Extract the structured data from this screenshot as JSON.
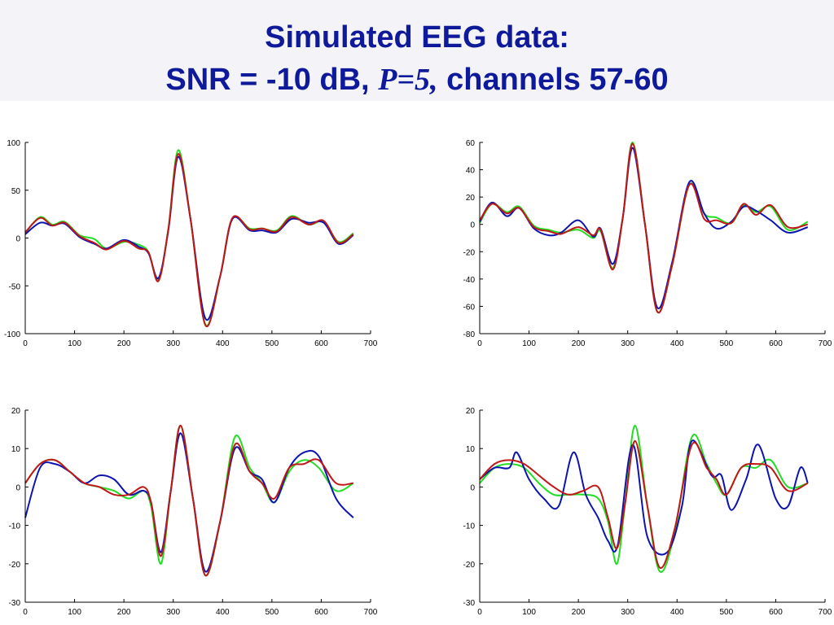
{
  "title": {
    "line1": "Simulated EEG data:",
    "line2_prefix": "SNR = -10 dB,",
    "line2_math": "P=5,",
    "line2_suffix": "channels 57-60"
  },
  "colors": {
    "title": "#0e1a99",
    "green": "#22dd22",
    "blue": "#0c14b0",
    "red": "#c01818"
  },
  "chart_data": [
    {
      "type": "line",
      "xlim": [
        0,
        700
      ],
      "ylim": [
        -100,
        100
      ],
      "xticks": [
        0,
        100,
        200,
        300,
        400,
        500,
        600,
        700
      ],
      "yticks": [
        100,
        50,
        0,
        -50,
        -100
      ],
      "series": [
        {
          "color": "green",
          "x": [
            0,
            30,
            55,
            80,
            110,
            140,
            165,
            200,
            230,
            250,
            270,
            290,
            310,
            335,
            365,
            395,
            420,
            455,
            480,
            510,
            540,
            575,
            605,
            635,
            665
          ],
          "y": [
            5,
            22,
            14,
            17,
            3,
            -1,
            -11,
            -4,
            -7,
            -15,
            -44,
            10,
            92,
            20,
            -90,
            -40,
            20,
            10,
            10,
            8,
            23,
            14,
            17,
            -4,
            5
          ]
        },
        {
          "color": "blue",
          "x": [
            0,
            30,
            55,
            80,
            110,
            140,
            165,
            200,
            230,
            250,
            270,
            290,
            310,
            335,
            365,
            395,
            420,
            455,
            480,
            510,
            540,
            575,
            605,
            635,
            665
          ],
          "y": [
            4,
            16,
            13,
            15,
            1,
            -6,
            -11,
            -2,
            -9,
            -16,
            -42,
            8,
            85,
            20,
            -84,
            -40,
            20,
            8,
            8,
            6,
            20,
            16,
            16,
            -6,
            3
          ]
        },
        {
          "color": "red",
          "x": [
            0,
            30,
            55,
            80,
            110,
            140,
            165,
            200,
            230,
            250,
            270,
            290,
            310,
            335,
            365,
            395,
            420,
            455,
            480,
            510,
            540,
            575,
            605,
            635,
            665
          ],
          "y": [
            6,
            21,
            13,
            16,
            2,
            -5,
            -12,
            -3,
            -11,
            -15,
            -45,
            9,
            88,
            20,
            -91,
            -40,
            21,
            9,
            10,
            7,
            22,
            14,
            18,
            -5,
            4
          ]
        }
      ]
    },
    {
      "type": "line",
      "xlim": [
        0,
        700
      ],
      "ylim": [
        -80,
        60
      ],
      "xticks": [
        0,
        100,
        200,
        300,
        400,
        500,
        600,
        700
      ],
      "yticks": [
        60,
        40,
        20,
        0,
        -20,
        -40,
        -60,
        -80
      ],
      "series": [
        {
          "color": "green",
          "x": [
            0,
            25,
            55,
            80,
            110,
            140,
            165,
            200,
            230,
            245,
            270,
            290,
            310,
            335,
            360,
            390,
            425,
            455,
            480,
            510,
            535,
            560,
            590,
            625,
            665
          ],
          "y": [
            1,
            15,
            9,
            13,
            -1,
            -4,
            -6,
            -4,
            -10,
            -5,
            -32,
            5,
            60,
            0,
            -64,
            -30,
            29,
            8,
            5,
            1,
            14,
            9,
            13,
            -4,
            2
          ]
        },
        {
          "color": "blue",
          "x": [
            0,
            25,
            55,
            80,
            110,
            140,
            165,
            200,
            230,
            245,
            270,
            290,
            310,
            335,
            360,
            390,
            425,
            455,
            480,
            510,
            535,
            560,
            590,
            625,
            665
          ],
          "y": [
            2,
            16,
            6,
            12,
            -3,
            -8,
            -6,
            3,
            -9,
            -3,
            -29,
            5,
            56,
            0,
            -61,
            -28,
            31,
            8,
            -3,
            2,
            13,
            10,
            3,
            -6,
            -2
          ]
        },
        {
          "color": "red",
          "x": [
            0,
            25,
            55,
            80,
            110,
            140,
            165,
            200,
            230,
            245,
            270,
            290,
            310,
            335,
            360,
            390,
            425,
            455,
            480,
            510,
            535,
            560,
            590,
            625,
            665
          ],
          "y": [
            3,
            15,
            8,
            12,
            -2,
            -5,
            -7,
            -2,
            -8,
            -4,
            -33,
            5,
            59,
            0,
            -64,
            -30,
            29,
            4,
            3,
            1,
            15,
            7,
            14,
            -2,
            0
          ]
        }
      ]
    },
    {
      "type": "line",
      "xlim": [
        0,
        700
      ],
      "ylim": [
        -30,
        20
      ],
      "xticks": [
        0,
        100,
        200,
        300,
        400,
        500,
        600,
        700
      ],
      "yticks": [
        20,
        10,
        0,
        -10,
        -20,
        -30
      ],
      "series": [
        {
          "color": "green",
          "x": [
            0,
            30,
            60,
            90,
            120,
            150,
            180,
            210,
            240,
            255,
            275,
            295,
            315,
            340,
            365,
            395,
            425,
            455,
            480,
            505,
            535,
            565,
            595,
            630,
            665
          ],
          "y": [
            1,
            6,
            7,
            4,
            1,
            0,
            -1,
            -3,
            -1,
            -5,
            -20,
            -1,
            16,
            -3,
            -23,
            -9,
            13,
            5,
            1,
            -4,
            4,
            7,
            5,
            -1,
            1
          ]
        },
        {
          "color": "blue",
          "x": [
            0,
            30,
            60,
            90,
            120,
            150,
            180,
            210,
            240,
            255,
            275,
            295,
            315,
            340,
            365,
            395,
            425,
            455,
            480,
            505,
            535,
            565,
            595,
            630,
            665
          ],
          "y": [
            -8,
            5,
            6,
            4,
            1,
            3,
            2,
            -2,
            -1,
            -4,
            -17,
            -1,
            14,
            -3,
            -22,
            -9,
            10,
            4,
            2,
            -4,
            5,
            9,
            8,
            -3,
            -8
          ]
        },
        {
          "color": "red",
          "x": [
            0,
            30,
            60,
            90,
            120,
            150,
            180,
            210,
            240,
            255,
            275,
            295,
            315,
            340,
            365,
            395,
            425,
            455,
            480,
            505,
            535,
            565,
            595,
            630,
            665
          ],
          "y": [
            1,
            6,
            7,
            4,
            1,
            0,
            -2,
            -2,
            0,
            -4,
            -18,
            -1,
            16,
            -3,
            -23,
            -9,
            11,
            4,
            1,
            -3,
            5,
            6,
            7,
            1,
            1
          ]
        }
      ]
    },
    {
      "type": "line",
      "xlim": [
        0,
        700
      ],
      "ylim": [
        -30,
        20
      ],
      "xticks": [
        0,
        100,
        200,
        300,
        400,
        500,
        600,
        700
      ],
      "yticks": [
        20,
        10,
        0,
        -10,
        -20,
        -30
      ],
      "series": [
        {
          "color": "green",
          "x": [
            0,
            30,
            60,
            90,
            120,
            150,
            180,
            210,
            240,
            260,
            278,
            295,
            315,
            340,
            365,
            395,
            430,
            460,
            480,
            500,
            530,
            560,
            590,
            625,
            665
          ],
          "y": [
            1,
            5,
            6,
            5,
            1,
            -2,
            -2,
            -2,
            -3,
            -9,
            -20,
            -4,
            16,
            -5,
            -22,
            -12,
            13,
            6,
            1,
            -2,
            5,
            5,
            7,
            0,
            1
          ]
        },
        {
          "color": "blue",
          "x": [
            0,
            30,
            60,
            75,
            100,
            130,
            160,
            190,
            215,
            240,
            260,
            280,
            310,
            340,
            380,
            410,
            430,
            470,
            490,
            510,
            540,
            565,
            600,
            625,
            650,
            665
          ],
          "y": [
            2,
            5,
            5,
            9,
            2,
            -3,
            -5,
            9,
            -2,
            -8,
            -14,
            -15,
            11,
            -13,
            -17,
            -5,
            12,
            3,
            3,
            -6,
            2,
            11,
            -3,
            -5,
            5,
            1
          ]
        },
        {
          "color": "red",
          "x": [
            0,
            30,
            60,
            90,
            120,
            150,
            180,
            210,
            240,
            260,
            278,
            295,
            315,
            340,
            365,
            395,
            430,
            460,
            480,
            500,
            530,
            560,
            590,
            625,
            665
          ],
          "y": [
            2,
            6,
            7,
            6,
            3,
            0,
            -2,
            -1,
            0,
            -8,
            -16,
            -4,
            12,
            -5,
            -21,
            -11,
            11,
            5,
            2,
            -2,
            5,
            6,
            5,
            -1,
            1
          ]
        }
      ]
    }
  ]
}
